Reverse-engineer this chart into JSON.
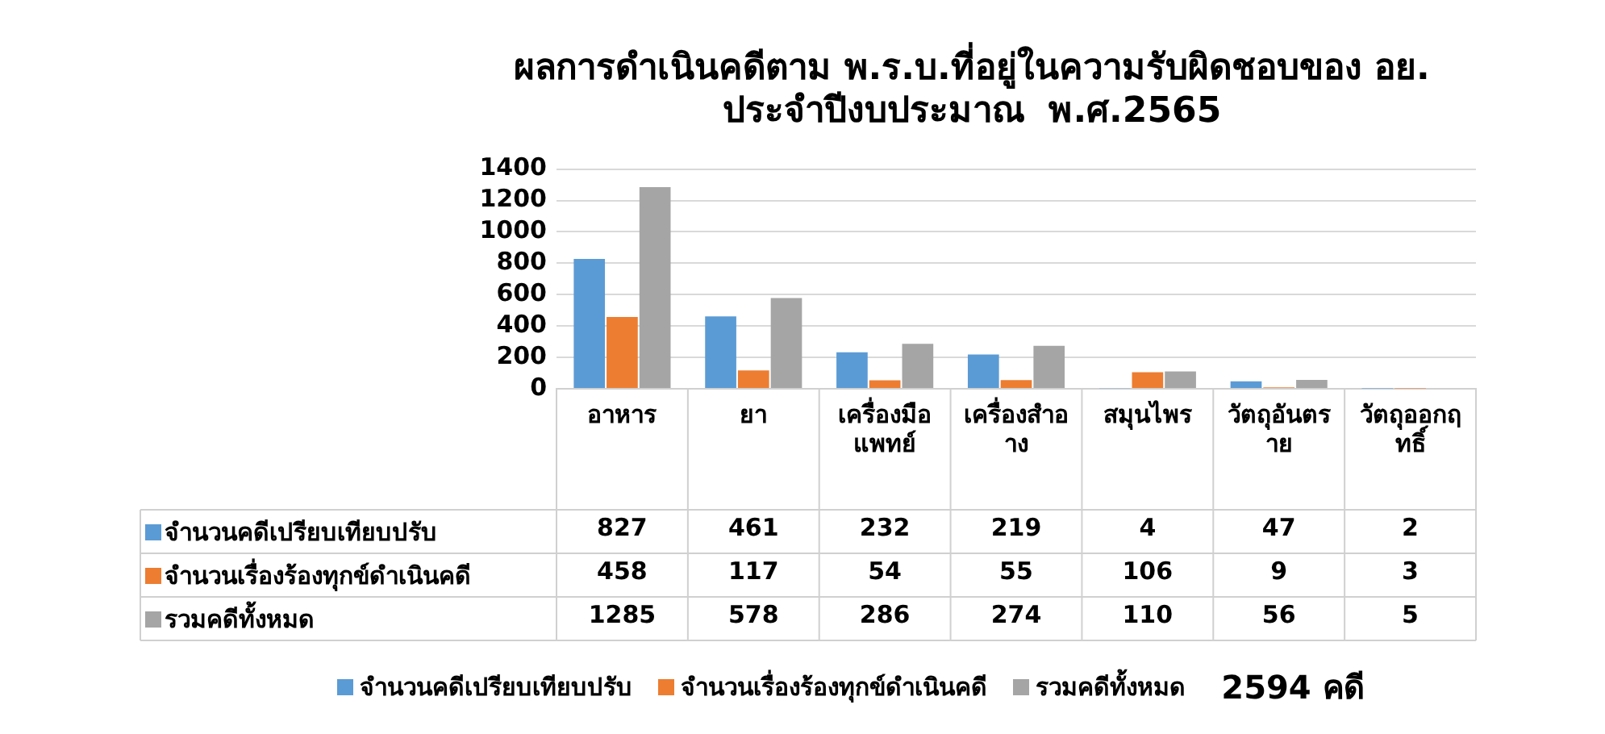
{
  "chart_data": {
    "type": "bar",
    "title": "ผลการดำเนินคดีตาม พ.ร.บ.ที่อยู่ในความรับผิดชอบของ อย. ประจำปีงบประมาณ  พ.ศ.2565",
    "categories": [
      "อาหาร",
      "ยา",
      "เครื่องมือแพทย์",
      "เครื่องสำอาง",
      "สมุนไพร",
      "วัตถุอันตราย",
      "วัตถุออกฤทธิ์"
    ],
    "series": [
      {
        "name": "จำนวนคดีเปรียบเทียบปรับ",
        "color": "#5b9bd5",
        "values": [
          827,
          461,
          232,
          219,
          4,
          47,
          2
        ]
      },
      {
        "name": "จำนวนเรื่องร้องทุกข์ดำเนินคดี",
        "color": "#ed7d31",
        "values": [
          458,
          117,
          54,
          55,
          106,
          9,
          3
        ]
      },
      {
        "name": "รวมคดีทั้งหมด",
        "color": "#a5a5a5",
        "values": [
          1285,
          578,
          286,
          274,
          110,
          56,
          5
        ]
      }
    ],
    "ylim": [
      0,
      1400
    ],
    "yticks": [
      0,
      200,
      400,
      600,
      800,
      1000,
      1200,
      1400
    ],
    "grid": "y",
    "legend": "bottom",
    "data_labels": true,
    "annotations": [
      "2594 คดี"
    ]
  }
}
